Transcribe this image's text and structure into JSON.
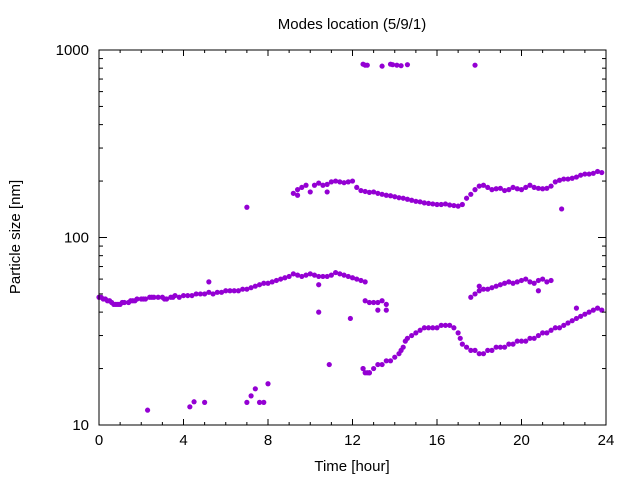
{
  "chart_data": {
    "type": "scatter",
    "title": "Modes location (5/9/1)",
    "xlabel": "Time [hour]",
    "ylabel": "Particle size [nm]",
    "xlim": [
      0,
      24
    ],
    "ylim": [
      10,
      1000
    ],
    "yscale": "log",
    "x_ticks": [
      0,
      4,
      8,
      12,
      16,
      20,
      24
    ],
    "x_tick_labels": [
      "0",
      "4",
      "8",
      "12",
      "16",
      "20",
      "24"
    ],
    "y_ticks": [
      10,
      100,
      1000
    ],
    "y_tick_labels": [
      "10",
      "100",
      "1000"
    ],
    "grid": false,
    "marker_color": "#9400d3",
    "points": [
      [
        0.0,
        48
      ],
      [
        0.1,
        48
      ],
      [
        0.2,
        47
      ],
      [
        0.3,
        47
      ],
      [
        0.4,
        46
      ],
      [
        0.5,
        46
      ],
      [
        0.6,
        45
      ],
      [
        0.7,
        44
      ],
      [
        0.8,
        44
      ],
      [
        0.9,
        44
      ],
      [
        1.0,
        44
      ],
      [
        1.1,
        45
      ],
      [
        1.2,
        45
      ],
      [
        1.4,
        45
      ],
      [
        1.5,
        46
      ],
      [
        1.6,
        46
      ],
      [
        1.7,
        46
      ],
      [
        1.8,
        47
      ],
      [
        2.0,
        47
      ],
      [
        2.1,
        47
      ],
      [
        2.2,
        47
      ],
      [
        2.4,
        48
      ],
      [
        2.5,
        48
      ],
      [
        2.6,
        48
      ],
      [
        2.8,
        48
      ],
      [
        3.0,
        48
      ],
      [
        3.1,
        47
      ],
      [
        3.2,
        47
      ],
      [
        3.4,
        48
      ],
      [
        3.5,
        48
      ],
      [
        3.6,
        49
      ],
      [
        3.8,
        48
      ],
      [
        4.0,
        49
      ],
      [
        4.2,
        49
      ],
      [
        4.4,
        49
      ],
      [
        4.6,
        50
      ],
      [
        4.8,
        50
      ],
      [
        5.0,
        50
      ],
      [
        5.2,
        51
      ],
      [
        5.4,
        50
      ],
      [
        5.6,
        51
      ],
      [
        5.8,
        51
      ],
      [
        6.0,
        52
      ],
      [
        6.2,
        52
      ],
      [
        6.4,
        52
      ],
      [
        6.6,
        52
      ],
      [
        6.8,
        53
      ],
      [
        7.0,
        53
      ],
      [
        7.2,
        54
      ],
      [
        7.4,
        55
      ],
      [
        7.6,
        56
      ],
      [
        7.8,
        57
      ],
      [
        8.0,
        57
      ],
      [
        8.2,
        58
      ],
      [
        8.4,
        59
      ],
      [
        8.6,
        60
      ],
      [
        8.8,
        61
      ],
      [
        9.0,
        62
      ],
      [
        9.2,
        64
      ],
      [
        9.4,
        63
      ],
      [
        9.6,
        62
      ],
      [
        9.8,
        63
      ],
      [
        10.0,
        64
      ],
      [
        10.2,
        63
      ],
      [
        10.4,
        62
      ],
      [
        10.6,
        62
      ],
      [
        10.8,
        62
      ],
      [
        11.0,
        63
      ],
      [
        11.2,
        65
      ],
      [
        11.4,
        64
      ],
      [
        11.6,
        63
      ],
      [
        11.8,
        62
      ],
      [
        12.0,
        61
      ],
      [
        12.2,
        60
      ],
      [
        12.4,
        59
      ],
      [
        12.6,
        58
      ],
      [
        5.2,
        58
      ],
      [
        10.4,
        56
      ],
      [
        12.6,
        46
      ],
      [
        12.8,
        45
      ],
      [
        13.0,
        45
      ],
      [
        13.2,
        45
      ],
      [
        13.4,
        46
      ],
      [
        13.6,
        44
      ],
      [
        13.2,
        41
      ],
      [
        13.6,
        41
      ],
      [
        10.4,
        40
      ],
      [
        11.9,
        37
      ],
      [
        9.2,
        172
      ],
      [
        9.4,
        180
      ],
      [
        9.6,
        185
      ],
      [
        9.8,
        190
      ],
      [
        10.0,
        175
      ],
      [
        10.2,
        190
      ],
      [
        10.4,
        195
      ],
      [
        10.6,
        190
      ],
      [
        10.8,
        192
      ],
      [
        11.0,
        198
      ],
      [
        11.2,
        200
      ],
      [
        11.4,
        198
      ],
      [
        11.6,
        196
      ],
      [
        11.8,
        198
      ],
      [
        12.0,
        200
      ],
      [
        12.2,
        185
      ],
      [
        12.4,
        178
      ],
      [
        12.6,
        176
      ],
      [
        12.8,
        174
      ],
      [
        13.0,
        175
      ],
      [
        13.2,
        172
      ],
      [
        13.4,
        170
      ],
      [
        13.6,
        168
      ],
      [
        13.8,
        167
      ],
      [
        14.0,
        165
      ],
      [
        14.2,
        163
      ],
      [
        14.4,
        162
      ],
      [
        14.6,
        160
      ],
      [
        14.8,
        158
      ],
      [
        15.0,
        156
      ],
      [
        15.2,
        155
      ],
      [
        15.4,
        153
      ],
      [
        15.6,
        152
      ],
      [
        15.8,
        151
      ],
      [
        16.0,
        150
      ],
      [
        16.2,
        150
      ],
      [
        16.4,
        151
      ],
      [
        16.6,
        149
      ],
      [
        16.8,
        148
      ],
      [
        17.0,
        147
      ],
      [
        17.2,
        150
      ],
      [
        17.4,
        162
      ],
      [
        17.6,
        170
      ],
      [
        17.8,
        180
      ],
      [
        18.0,
        188
      ],
      [
        18.2,
        190
      ],
      [
        18.4,
        185
      ],
      [
        18.6,
        180
      ],
      [
        18.8,
        182
      ],
      [
        19.0,
        183
      ],
      [
        19.2,
        178
      ],
      [
        19.4,
        180
      ],
      [
        19.6,
        185
      ],
      [
        19.8,
        182
      ],
      [
        20.0,
        180
      ],
      [
        20.2,
        185
      ],
      [
        20.4,
        190
      ],
      [
        20.6,
        185
      ],
      [
        20.8,
        183
      ],
      [
        21.0,
        182
      ],
      [
        21.2,
        183
      ],
      [
        21.4,
        188
      ],
      [
        21.6,
        198
      ],
      [
        21.8,
        202
      ],
      [
        22.0,
        205
      ],
      [
        22.2,
        205
      ],
      [
        22.4,
        207
      ],
      [
        22.6,
        210
      ],
      [
        22.8,
        215
      ],
      [
        23.0,
        218
      ],
      [
        23.2,
        218
      ],
      [
        23.4,
        220
      ],
      [
        23.6,
        225
      ],
      [
        23.8,
        222
      ],
      [
        10.8,
        175
      ],
      [
        9.4,
        168
      ],
      [
        7.0,
        145
      ],
      [
        21.9,
        142
      ],
      [
        12.5,
        840
      ],
      [
        12.6,
        830
      ],
      [
        12.7,
        830
      ],
      [
        13.4,
        820
      ],
      [
        13.8,
        840
      ],
      [
        13.9,
        835
      ],
      [
        14.1,
        830
      ],
      [
        14.3,
        825
      ],
      [
        14.6,
        835
      ],
      [
        17.8,
        830
      ],
      [
        12.5,
        20
      ],
      [
        12.6,
        19
      ],
      [
        12.7,
        19
      ],
      [
        12.8,
        19
      ],
      [
        13.0,
        20
      ],
      [
        13.2,
        21
      ],
      [
        13.4,
        21
      ],
      [
        13.6,
        22
      ],
      [
        13.8,
        22
      ],
      [
        14.0,
        23
      ],
      [
        14.2,
        24
      ],
      [
        14.3,
        25
      ],
      [
        14.4,
        26
      ],
      [
        14.5,
        28
      ],
      [
        14.6,
        29
      ],
      [
        14.8,
        30
      ],
      [
        15.0,
        31
      ],
      [
        15.2,
        32
      ],
      [
        15.4,
        33
      ],
      [
        15.6,
        33
      ],
      [
        15.8,
        33
      ],
      [
        16.0,
        33
      ],
      [
        16.2,
        34
      ],
      [
        16.4,
        34
      ],
      [
        16.6,
        34
      ],
      [
        16.8,
        33
      ],
      [
        17.0,
        31
      ],
      [
        17.1,
        29
      ],
      [
        17.2,
        27
      ],
      [
        17.4,
        26
      ],
      [
        17.6,
        25
      ],
      [
        17.8,
        25
      ],
      [
        18.0,
        24
      ],
      [
        18.2,
        24
      ],
      [
        18.4,
        25
      ],
      [
        18.6,
        25
      ],
      [
        18.8,
        26
      ],
      [
        19.0,
        26
      ],
      [
        19.2,
        26
      ],
      [
        19.4,
        27
      ],
      [
        19.6,
        27
      ],
      [
        19.8,
        28
      ],
      [
        20.0,
        28
      ],
      [
        20.2,
        28
      ],
      [
        20.4,
        29
      ],
      [
        20.6,
        29
      ],
      [
        20.8,
        30
      ],
      [
        21.0,
        31
      ],
      [
        21.2,
        31
      ],
      [
        21.4,
        32
      ],
      [
        21.6,
        33
      ],
      [
        21.8,
        33
      ],
      [
        22.0,
        34
      ],
      [
        22.2,
        35
      ],
      [
        22.4,
        36
      ],
      [
        22.6,
        37
      ],
      [
        22.8,
        38
      ],
      [
        23.0,
        39
      ],
      [
        23.2,
        40
      ],
      [
        23.4,
        41
      ],
      [
        23.6,
        42
      ],
      [
        23.8,
        41
      ],
      [
        22.6,
        42
      ],
      [
        12.5,
        20
      ],
      [
        10.9,
        21
      ],
      [
        12.8,
        19
      ],
      [
        17.6,
        48
      ],
      [
        17.8,
        50
      ],
      [
        18.0,
        52
      ],
      [
        18.2,
        53
      ],
      [
        18.4,
        53
      ],
      [
        18.6,
        54
      ],
      [
        18.8,
        55
      ],
      [
        19.0,
        56
      ],
      [
        19.2,
        57
      ],
      [
        19.4,
        58
      ],
      [
        19.6,
        57
      ],
      [
        19.8,
        58
      ],
      [
        20.0,
        59
      ],
      [
        20.2,
        60
      ],
      [
        20.4,
        58
      ],
      [
        20.6,
        57
      ],
      [
        20.8,
        59
      ],
      [
        21.0,
        60
      ],
      [
        21.2,
        58
      ],
      [
        21.4,
        59
      ],
      [
        18.0,
        55
      ],
      [
        20.8,
        52
      ],
      [
        2.3,
        12
      ],
      [
        4.3,
        12.5
      ],
      [
        4.5,
        13.3
      ],
      [
        5.0,
        13.2
      ],
      [
        7.0,
        13.2
      ],
      [
        7.2,
        14.3
      ],
      [
        7.4,
        15.6
      ],
      [
        7.6,
        13.2
      ],
      [
        7.8,
        13.2
      ],
      [
        8.0,
        16.6
      ]
    ]
  }
}
